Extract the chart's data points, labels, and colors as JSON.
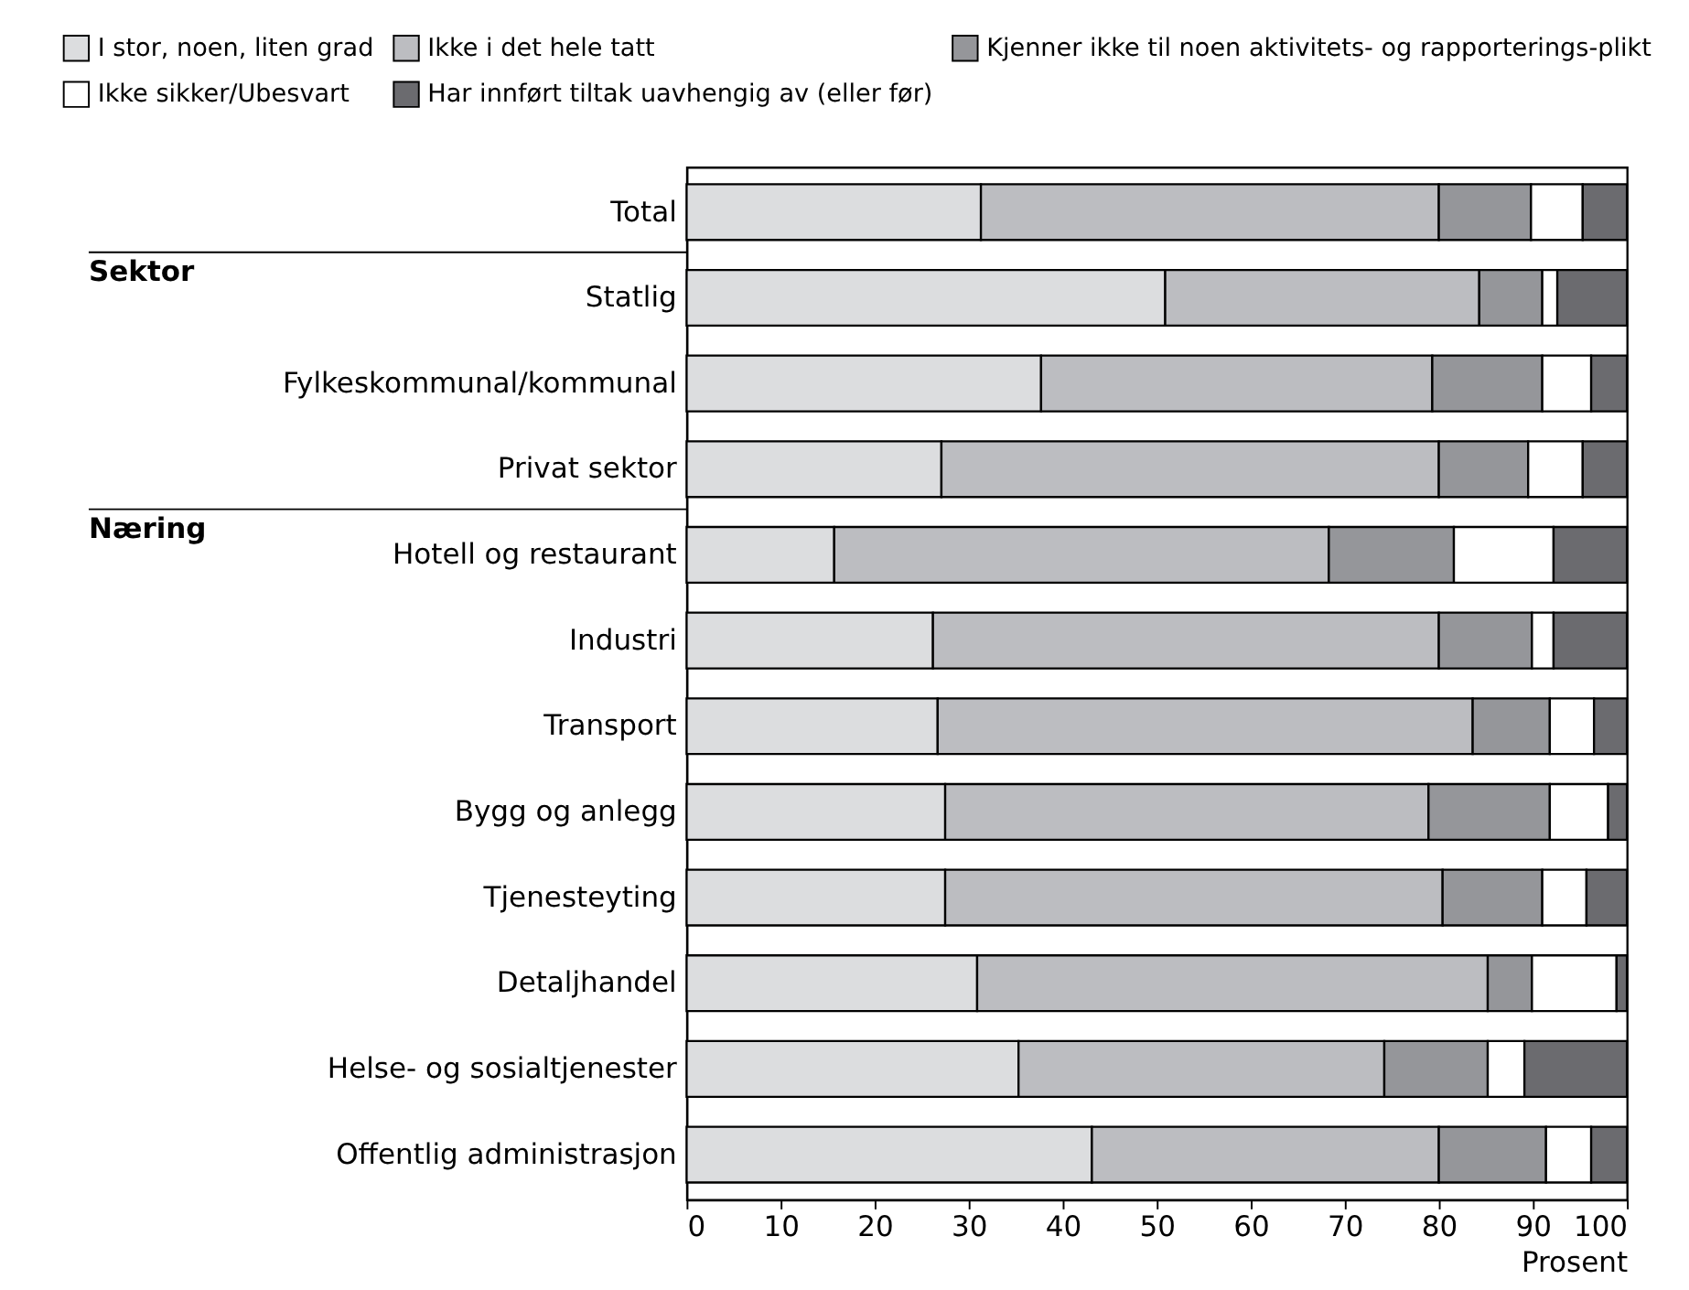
{
  "chart_data": {
    "type": "bar",
    "orientation": "horizontal",
    "stacked": true,
    "categories": [
      "Total",
      "Statlig",
      "Fylkeskommunal/kommunal",
      "Privat sektor",
      "Hotell og restaurant",
      "Industri",
      "Transport",
      "Bygg og anlegg",
      "Tjenesteyting",
      "Detaljhandel",
      "Helse- og sosialtjenester",
      "Offentlig administrasjon"
    ],
    "series": [
      {
        "name": "I stor, noen, liten grad",
        "color": "#dcdddf",
        "values": [
          31.3,
          50.9,
          37.7,
          27.1,
          15.7,
          26.2,
          26.7,
          27.5,
          27.5,
          30.9,
          35.3,
          43.1
        ]
      },
      {
        "name": "Ikke i det hele tatt",
        "color": "#bcbdc1",
        "values": [
          48.7,
          33.4,
          41.6,
          52.9,
          52.6,
          53.8,
          56.9,
          51.4,
          52.9,
          54.3,
          38.9,
          36.9
        ]
      },
      {
        "name": "Kjenner ikke til noen aktivitets- og rapporterings-plikt",
        "color": "#95969a",
        "values": [
          9.8,
          6.7,
          11.7,
          9.5,
          13.3,
          9.9,
          8.2,
          12.9,
          10.6,
          4.7,
          11.0,
          11.4
        ]
      },
      {
        "name": "Ikke sikker/Ubesvart",
        "color": "#ffffff",
        "values": [
          5.5,
          1.6,
          5.2,
          5.8,
          10.6,
          2.3,
          4.7,
          6.2,
          4.7,
          9.0,
          3.9,
          4.8
        ]
      },
      {
        "name": "Har innført tiltak uavhengig av (eller før)",
        "color": "#6b6b6f",
        "values": [
          4.7,
          7.4,
          3.8,
          4.7,
          7.8,
          7.8,
          3.5,
          2.0,
          4.3,
          1.1,
          10.9,
          3.8
        ]
      }
    ],
    "xlim": [
      0,
      100
    ],
    "xticks": [
      0,
      10,
      20,
      30,
      40,
      50,
      60,
      70,
      80,
      90,
      100
    ],
    "xlabel": "Prosent",
    "annotations": [
      "Sektor",
      "Næring"
    ],
    "grid": false,
    "legend": "top"
  }
}
